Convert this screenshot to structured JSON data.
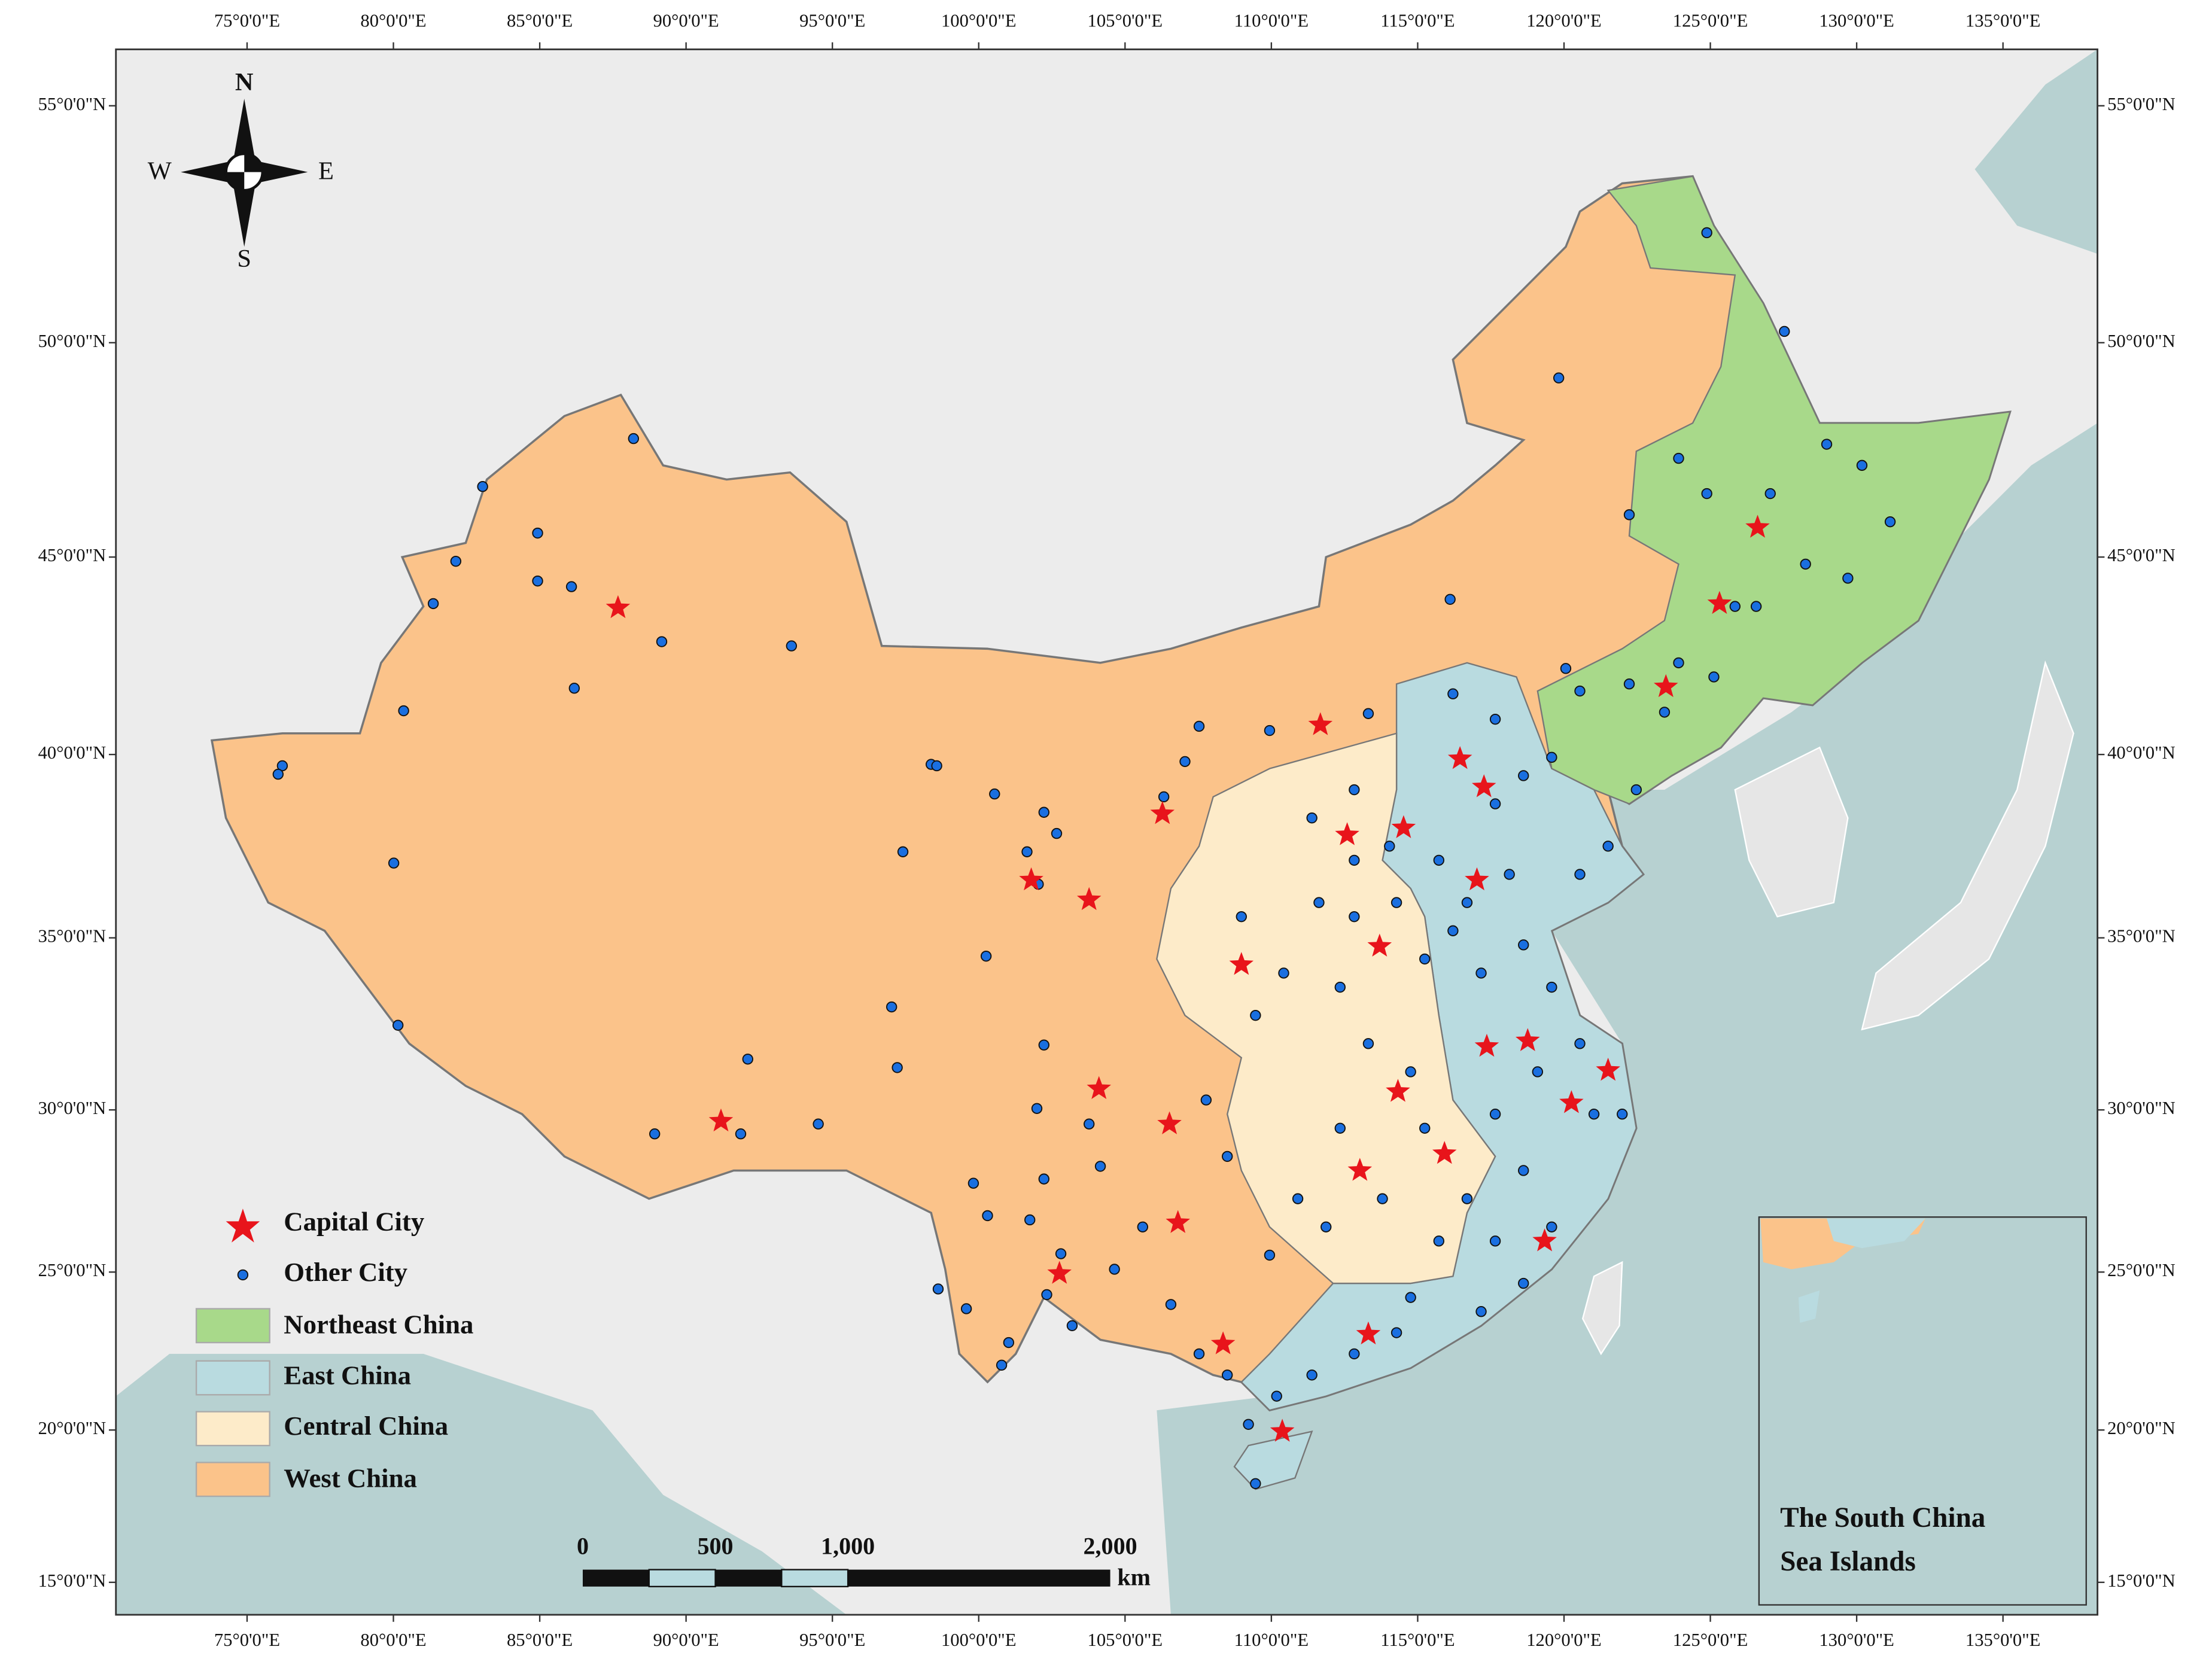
{
  "compass": {
    "north": "N",
    "south": "S",
    "east": "E",
    "west": "W"
  },
  "lon_ticks": [
    "75°0'0\"E",
    "80°0'0\"E",
    "85°0'0\"E",
    "90°0'0\"E",
    "95°0'0\"E",
    "100°0'0\"E",
    "105°0'0\"E",
    "110°0'0\"E",
    "115°0'0\"E",
    "120°0'0\"E",
    "125°0'0\"E",
    "130°0'0\"E",
    "135°0'0\"E"
  ],
  "lat_ticks": [
    "55°0'0\"N",
    "50°0'0\"N",
    "45°0'0\"N",
    "40°0'0\"N",
    "35°0'0\"N",
    "30°0'0\"N",
    "25°0'0\"N",
    "20°0'0\"N",
    "15°0'0\"N"
  ],
  "legend": {
    "items": [
      "Capital City",
      "Other City",
      "Northeast China",
      "East China",
      "Central China",
      "West China"
    ]
  },
  "scale_bar": {
    "labels": [
      "0",
      "500",
      "1,000",
      "2,000"
    ],
    "unit": "km"
  },
  "inset": {
    "title": [
      "The South China",
      "Sea Islands"
    ]
  }
}
